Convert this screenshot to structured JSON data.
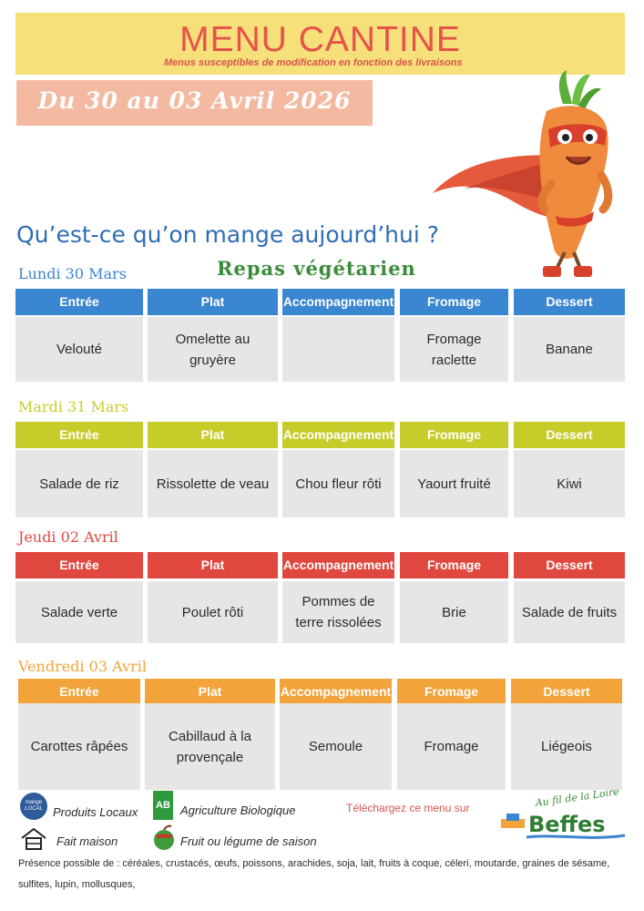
{
  "header": {
    "title": "MENU CANTINE",
    "subtitle": "Menus susceptibles de modification en fonction des livraisons",
    "date_range": "Du 30 au 03 Avril 2026"
  },
  "question": "Qu’est-ce qu’on mange aujourd’hui ?",
  "vegetarian_label": "Repas végétarien",
  "columns": [
    "Entrée",
    "Plat",
    "Accompagnement",
    "Fromage",
    "Dessert"
  ],
  "days": [
    {
      "label": "Lundi 30 Mars",
      "color": "#3a86d0",
      "items": [
        "Velouté",
        "Omelette au gruyère",
        "",
        "Fromage raclette",
        "Banane"
      ]
    },
    {
      "label": "Mardi 31 Mars",
      "color": "#c6cc2a",
      "items": [
        "Salade de riz",
        "Rissolette de veau",
        "Chou fleur rôti",
        "Yaourt fruité",
        "Kiwi"
      ]
    },
    {
      "label": "Jeudi 02 Avril",
      "color": "#e0483f",
      "items": [
        "Salade verte",
        "Poulet rôti",
        "Pommes de terre rissolées",
        "Brie",
        "Salade de fruits"
      ]
    },
    {
      "label": "Vendredi 03 Avril",
      "color": "#f2a33a",
      "items": [
        "Carottes râpées",
        "Cabillaud à la provençale",
        "Semoule",
        "Fromage",
        "Liégeois"
      ]
    }
  ],
  "legend": {
    "local": "Produits Locaux",
    "local_badge": "mange LOCAL",
    "bio": "Agriculture Biologique",
    "bio_badge": "AB",
    "homemade": "Fait maison",
    "seasonal": "Fruit ou légume de saison"
  },
  "download_text": "Téléchargez ce menu sur",
  "brand": {
    "tagline": "Au fil de la Loire",
    "name": "Beffes"
  },
  "allergens_line1": "Présence possible de  : céréales, crustacés, œufs, poissons, arachides, soja, lait, fruits à coque, céleri,  moutarde,  graines de sésame,",
  "allergens_line2": "sulfites, lupin, mollusques,"
}
